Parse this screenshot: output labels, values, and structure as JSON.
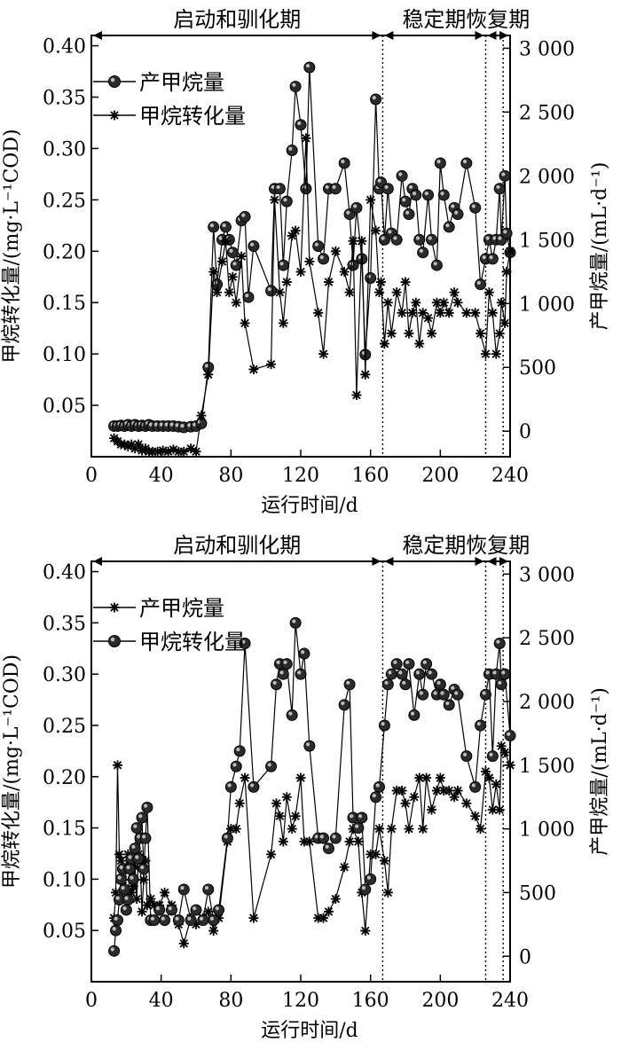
{
  "chart_data": [
    {
      "type": "line",
      "xlabel": "运行时间/d",
      "ylabel_left": "甲烷转化量/(mg·L⁻¹COD)",
      "ylabel_right": "产甲烷量/(mL·d⁻¹)",
      "xlim": [
        0,
        240
      ],
      "x_ticks": [
        "0",
        "40",
        "80",
        "120",
        "160",
        "200",
        "240"
      ],
      "ylim_left": [
        0.0,
        0.41
      ],
      "y_ticks_left": [
        "0.05",
        "0.10",
        "0.15",
        "0.20",
        "0.25",
        "0.30",
        "0.35",
        "0.40"
      ],
      "ylim_right": [
        -200,
        3100
      ],
      "y_ticks_right": [
        "0",
        "500",
        "1 000",
        "1 500",
        "2 000",
        "2 500",
        "3 000"
      ],
      "phases": [
        {
          "label": "启动和驯化期",
          "start": 0,
          "end": 167
        },
        {
          "label": "稳定期",
          "start": 167,
          "end": 226
        },
        {
          "label": "恢复期",
          "start": 226,
          "end": 240
        }
      ],
      "phase_boundaries": [
        167,
        226,
        236
      ],
      "legend": [
        {
          "label": "产甲烷量",
          "marker": "circle"
        },
        {
          "label": "甲烷转化量",
          "marker": "star"
        }
      ],
      "series": [
        {
          "name": "产甲烷量",
          "axis": "right",
          "marker": "circle",
          "x": [
            13,
            15,
            17,
            19,
            21,
            23,
            25,
            27,
            29,
            31,
            33,
            35,
            38,
            41,
            44,
            47,
            50,
            53,
            57,
            60,
            63,
            67,
            70,
            72,
            75,
            77,
            79,
            81,
            83,
            86,
            88,
            90,
            93,
            103,
            105,
            108,
            110,
            112,
            115,
            117,
            120,
            123,
            125,
            130,
            133,
            136,
            140,
            145,
            148,
            150,
            152,
            155,
            157,
            160,
            163,
            165,
            166,
            168,
            170,
            172,
            175,
            178,
            180,
            182,
            184,
            186,
            188,
            190,
            193,
            195,
            198,
            200,
            202,
            205,
            208,
            210,
            215,
            220,
            223,
            226,
            228,
            230,
            232,
            234,
            235,
            237,
            238,
            240
          ],
          "y": [
            40,
            40,
            45,
            40,
            50,
            40,
            50,
            40,
            45,
            40,
            50,
            40,
            40,
            40,
            40,
            40,
            35,
            30,
            35,
            40,
            60,
            500,
            1600,
            1150,
            1500,
            1600,
            1500,
            1400,
            1300,
            1650,
            1680,
            1050,
            1450,
            1100,
            1900,
            1900,
            1300,
            1800,
            2200,
            2700,
            2400,
            1900,
            2850,
            1450,
            1350,
            1900,
            1900,
            2100,
            1700,
            1300,
            1750,
            1350,
            600,
            1200,
            2600,
            1900,
            1950,
            1500,
            1900,
            1550,
            1500,
            2000,
            1800,
            1700,
            1900,
            1850,
            1500,
            1400,
            1850,
            1500,
            1300,
            2100,
            1850,
            1600,
            1750,
            1700,
            2100,
            1750,
            1150,
            1350,
            1500,
            1350,
            1500,
            1900,
            1500,
            2000,
            1550,
            1400
          ],
          "label": "产甲烷量"
        },
        {
          "name": "甲烷转化量",
          "axis": "left",
          "marker": "star",
          "x": [
            13,
            15,
            17,
            19,
            21,
            23,
            25,
            27,
            29,
            31,
            33,
            35,
            38,
            41,
            44,
            47,
            50,
            53,
            57,
            60,
            63,
            67,
            70,
            72,
            75,
            77,
            79,
            81,
            83,
            86,
            88,
            93,
            103,
            105,
            108,
            110,
            112,
            115,
            117,
            120,
            123,
            125,
            130,
            133,
            136,
            140,
            145,
            148,
            150,
            152,
            155,
            157,
            160,
            163,
            165,
            166,
            168,
            170,
            172,
            175,
            178,
            180,
            182,
            184,
            186,
            188,
            190,
            193,
            195,
            198,
            200,
            202,
            205,
            208,
            210,
            215,
            220,
            223,
            226,
            228,
            230,
            232,
            234,
            235,
            237,
            238,
            240
          ],
          "y": [
            0.018,
            0.015,
            0.012,
            0.012,
            0.01,
            0.012,
            0.008,
            0.012,
            0.006,
            0.008,
            0.005,
            0.005,
            0.005,
            0.006,
            0.005,
            0.007,
            0.005,
            0.005,
            0.008,
            0.005,
            0.04,
            0.08,
            0.18,
            0.16,
            0.19,
            0.21,
            0.16,
            0.175,
            0.15,
            0.195,
            0.13,
            0.085,
            0.09,
            0.25,
            0.16,
            0.13,
            0.17,
            0.215,
            0.22,
            0.18,
            0.31,
            0.19,
            0.14,
            0.1,
            0.17,
            0.2,
            0.18,
            0.16,
            0.21,
            0.06,
            0.21,
            0.08,
            0.25,
            0.22,
            0.16,
            0.17,
            0.11,
            0.15,
            0.12,
            0.16,
            0.14,
            0.17,
            0.12,
            0.14,
            0.15,
            0.11,
            0.14,
            0.135,
            0.12,
            0.15,
            0.14,
            0.15,
            0.14,
            0.16,
            0.15,
            0.14,
            0.14,
            0.12,
            0.1,
            0.16,
            0.14,
            0.1,
            0.12,
            0.15,
            0.13,
            0.18,
            0.2
          ],
          "label": "甲烷转化量"
        }
      ]
    },
    {
      "type": "line",
      "xlabel": "运行时间/d",
      "ylabel_left": "甲烷转化量/(mg·L⁻¹COD)",
      "ylabel_right": "产甲烷量/(mL·d⁻¹)",
      "xlim": [
        0,
        240
      ],
      "x_ticks": [
        "0",
        "40",
        "80",
        "120",
        "160",
        "200",
        "240"
      ],
      "ylim_left": [
        0.0,
        0.41
      ],
      "y_ticks_left": [
        "0.05",
        "0.10",
        "0.15",
        "0.20",
        "0.25",
        "0.30",
        "0.35",
        "0.40"
      ],
      "ylim_right": [
        -200,
        3100
      ],
      "y_ticks_right": [
        "0",
        "500",
        "1 000",
        "1 500",
        "2 000",
        "2 500",
        "3 000"
      ],
      "phases": [
        {
          "label": "启动和驯化期",
          "start": 0,
          "end": 167
        },
        {
          "label": "稳定期",
          "start": 167,
          "end": 226
        },
        {
          "label": "恢复期",
          "start": 226,
          "end": 240
        }
      ],
      "phase_boundaries": [
        167,
        226,
        236
      ],
      "legend": [
        {
          "label": "产甲烷量",
          "marker": "star"
        },
        {
          "label": "甲烷转化量",
          "marker": "circle"
        }
      ],
      "series": [
        {
          "name": "产甲烷量",
          "axis": "right",
          "marker": "star",
          "x": [
            13,
            14,
            15,
            16,
            17,
            18,
            19,
            20,
            21,
            22,
            23,
            24,
            25,
            26,
            27,
            28,
            29,
            30,
            31,
            32,
            34,
            36,
            39,
            42,
            46,
            50,
            53,
            57,
            60,
            64,
            67,
            70,
            73,
            78,
            80,
            83,
            85,
            88,
            93,
            103,
            106,
            108,
            110,
            112,
            115,
            117,
            120,
            122,
            125,
            130,
            133,
            136,
            140,
            145,
            148,
            150,
            153,
            155,
            157,
            160,
            163,
            165,
            168,
            170,
            172,
            175,
            178,
            180,
            182,
            185,
            188,
            190,
            192,
            195,
            198,
            200,
            202,
            205,
            208,
            210,
            215,
            220,
            223,
            226,
            228,
            230,
            232,
            234,
            235,
            237,
            240
          ],
          "y": [
            300,
            500,
            1500,
            800,
            750,
            600,
            500,
            700,
            800,
            750,
            500,
            550,
            700,
            450,
            800,
            750,
            350,
            600,
            750,
            400,
            450,
            400,
            400,
            500,
            400,
            250,
            100,
            300,
            250,
            300,
            350,
            200,
            300,
            900,
            1000,
            1000,
            1200,
            1400,
            300,
            800,
            1200,
            1100,
            900,
            1250,
            1000,
            1100,
            1400,
            900,
            900,
            300,
            300,
            350,
            450,
            700,
            900,
            1000,
            900,
            500,
            200,
            800,
            800,
            1000,
            750,
            500,
            1000,
            1300,
            1300,
            1200,
            1000,
            1250,
            1400,
            1000,
            1400,
            1150,
            1300,
            1400,
            1300,
            1300,
            1250,
            1300,
            1200,
            1100,
            1000,
            1450,
            1400,
            1150,
            1350,
            1150,
            1650,
            1600,
            1500
          ],
          "label": "产甲烷量"
        },
        {
          "name": "甲烷转化量",
          "axis": "left",
          "marker": "circle",
          "x": [
            13,
            14,
            15,
            16,
            17,
            18,
            19,
            20,
            21,
            22,
            23,
            24,
            25,
            26,
            27,
            28,
            29,
            30,
            31,
            32,
            34,
            36,
            39,
            42,
            46,
            50,
            53,
            57,
            60,
            64,
            67,
            70,
            73,
            78,
            80,
            83,
            85,
            88,
            93,
            103,
            106,
            108,
            110,
            112,
            115,
            117,
            120,
            122,
            125,
            130,
            133,
            136,
            140,
            145,
            148,
            150,
            153,
            155,
            157,
            160,
            163,
            165,
            168,
            170,
            172,
            175,
            178,
            180,
            182,
            185,
            188,
            190,
            192,
            195,
            198,
            200,
            202,
            205,
            208,
            210,
            215,
            220,
            223,
            226,
            228,
            230,
            232,
            234,
            235,
            237,
            240
          ],
          "y": [
            0.03,
            0.05,
            0.06,
            0.08,
            0.1,
            0.11,
            0.09,
            0.07,
            0.08,
            0.11,
            0.12,
            0.1,
            0.13,
            0.15,
            0.12,
            0.14,
            0.16,
            0.11,
            0.14,
            0.17,
            0.06,
            0.06,
            0.07,
            0.06,
            0.07,
            0.06,
            0.09,
            0.06,
            0.07,
            0.06,
            0.09,
            0.06,
            0.07,
            0.14,
            0.19,
            0.21,
            0.225,
            0.33,
            0.19,
            0.21,
            0.29,
            0.31,
            0.3,
            0.31,
            0.26,
            0.35,
            0.3,
            0.32,
            0.23,
            0.14,
            0.14,
            0.13,
            0.14,
            0.27,
            0.29,
            0.16,
            0.15,
            0.16,
            0.09,
            0.1,
            0.18,
            0.19,
            0.25,
            0.29,
            0.3,
            0.31,
            0.3,
            0.29,
            0.31,
            0.26,
            0.3,
            0.28,
            0.31,
            0.3,
            0.28,
            0.29,
            0.28,
            0.27,
            0.285,
            0.28,
            0.22,
            0.19,
            0.25,
            0.28,
            0.3,
            0.22,
            0.3,
            0.33,
            0.29,
            0.3,
            0.24
          ],
          "label": "甲烷转化量"
        }
      ]
    }
  ]
}
